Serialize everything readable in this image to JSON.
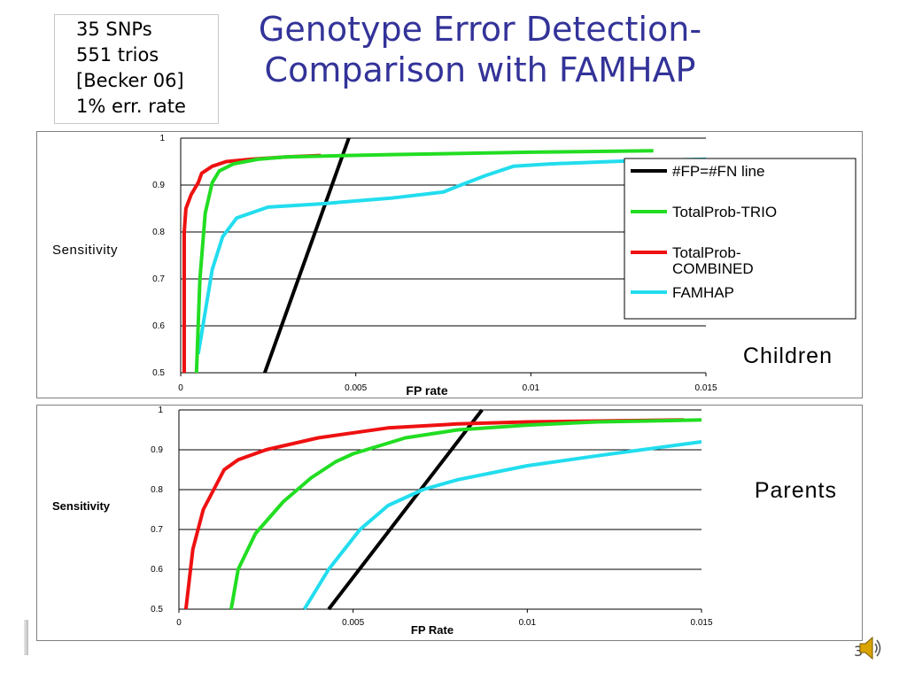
{
  "slide": {
    "title_lines": [
      "Genotype Error Detection-",
      "Comparison with FAMHAP"
    ],
    "info_lines": [
      "35 SNPs",
      "551 trios",
      "[Becker 06]",
      "1% err. rate"
    ],
    "slide_number": "3"
  },
  "colors": {
    "title": "#333399",
    "fp_fn_line": "#000000",
    "totalprob_trio": "#22dd22",
    "totalprob_combined": "#ee1111",
    "famhap": "#22ddee"
  },
  "icons": {
    "speaker": "speaker-icon"
  },
  "chart_data": [
    {
      "type": "line",
      "panel_label": "Children",
      "xlabel": "FP rate",
      "ylabel": "Sensitivity",
      "xlim": [
        0,
        0.015
      ],
      "ylim": [
        0.5,
        1
      ],
      "x_ticks": [
        "0",
        "0.005",
        "0.01",
        "0.015"
      ],
      "y_ticks": [
        "0.5",
        "0.6",
        "0.7",
        "0.8",
        "0.9",
        "1"
      ],
      "grid": "horizontal",
      "legend": "right",
      "series": [
        {
          "name": "#FP=#FN line",
          "color": "#000000",
          "points": [
            [
              0.0024,
              0.5
            ],
            [
              0.0048,
              1.0
            ]
          ]
        },
        {
          "name": "TotalProb-TRIO",
          "color": "#22dd22",
          "points": [
            [
              0.00045,
              0.5
            ],
            [
              0.00055,
              0.7
            ],
            [
              0.0007,
              0.84
            ],
            [
              0.0009,
              0.905
            ],
            [
              0.0011,
              0.93
            ],
            [
              0.0015,
              0.945
            ],
            [
              0.0022,
              0.955
            ],
            [
              0.003,
              0.96
            ],
            [
              0.006,
              0.965
            ],
            [
              0.01,
              0.97
            ],
            [
              0.0135,
              0.973
            ]
          ]
        },
        {
          "name": "TotalProb-COMBINED",
          "color": "#ee1111",
          "points": [
            [
              0.0001,
              0.5
            ],
            [
              0.0001,
              0.8
            ],
            [
              0.00015,
              0.85
            ],
            [
              0.0003,
              0.88
            ],
            [
              0.0005,
              0.905
            ],
            [
              0.0006,
              0.925
            ],
            [
              0.0009,
              0.94
            ],
            [
              0.0013,
              0.95
            ],
            [
              0.002,
              0.955
            ],
            [
              0.003,
              0.96
            ],
            [
              0.004,
              0.963
            ]
          ]
        },
        {
          "name": "FAMHAP",
          "color": "#22ddee",
          "points": [
            [
              0.0005,
              0.54
            ],
            [
              0.0007,
              0.63
            ],
            [
              0.0009,
              0.72
            ],
            [
              0.0012,
              0.79
            ],
            [
              0.0016,
              0.83
            ],
            [
              0.0025,
              0.853
            ],
            [
              0.004,
              0.86
            ],
            [
              0.006,
              0.872
            ],
            [
              0.0075,
              0.885
            ],
            [
              0.008,
              0.9
            ],
            [
              0.0087,
              0.92
            ],
            [
              0.0095,
              0.94
            ],
            [
              0.0105,
              0.945
            ],
            [
              0.013,
              0.952
            ],
            [
              0.015,
              0.955
            ]
          ]
        }
      ]
    },
    {
      "type": "line",
      "panel_label": "Parents",
      "xlabel": "FP Rate",
      "ylabel": "Sensitivity",
      "xlim": [
        0,
        0.015
      ],
      "ylim": [
        0.5,
        1
      ],
      "x_ticks": [
        "0",
        "0.005",
        "0.01",
        "0.015"
      ],
      "y_ticks": [
        "0.5",
        "0.6",
        "0.7",
        "0.8",
        "0.9",
        "1"
      ],
      "grid": "horizontal",
      "legend": "none",
      "series": [
        {
          "name": "#FP=#FN line",
          "color": "#000000",
          "points": [
            [
              0.0043,
              0.5
            ],
            [
              0.0087,
              1.0
            ]
          ]
        },
        {
          "name": "TotalProb-TRIO",
          "color": "#22dd22",
          "points": [
            [
              0.0015,
              0.5
            ],
            [
              0.0017,
              0.6
            ],
            [
              0.0022,
              0.69
            ],
            [
              0.003,
              0.77
            ],
            [
              0.0038,
              0.83
            ],
            [
              0.0045,
              0.87
            ],
            [
              0.005,
              0.89
            ],
            [
              0.0065,
              0.93
            ],
            [
              0.008,
              0.95
            ],
            [
              0.01,
              0.962
            ],
            [
              0.012,
              0.97
            ],
            [
              0.015,
              0.975
            ]
          ]
        },
        {
          "name": "TotalProb-COMBINED",
          "color": "#ee1111",
          "points": [
            [
              0.0002,
              0.5
            ],
            [
              0.0004,
              0.65
            ],
            [
              0.0007,
              0.75
            ],
            [
              0.001,
              0.8
            ],
            [
              0.0013,
              0.85
            ],
            [
              0.0017,
              0.875
            ],
            [
              0.0025,
              0.9
            ],
            [
              0.004,
              0.93
            ],
            [
              0.006,
              0.955
            ],
            [
              0.008,
              0.965
            ],
            [
              0.01,
              0.97
            ],
            [
              0.0145,
              0.975
            ]
          ]
        },
        {
          "name": "FAMHAP",
          "color": "#22ddee",
          "points": [
            [
              0.0036,
              0.5
            ],
            [
              0.0043,
              0.6
            ],
            [
              0.0052,
              0.7
            ],
            [
              0.006,
              0.76
            ],
            [
              0.007,
              0.8
            ],
            [
              0.008,
              0.825
            ],
            [
              0.01,
              0.86
            ],
            [
              0.012,
              0.885
            ],
            [
              0.015,
              0.92
            ]
          ]
        }
      ]
    }
  ]
}
